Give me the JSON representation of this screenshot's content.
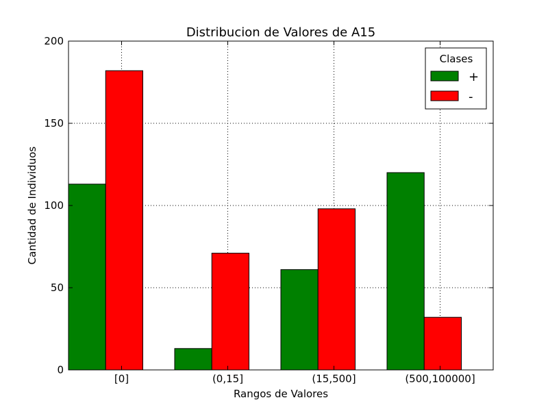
{
  "chart_data": {
    "type": "bar",
    "title": "Distribucion de Valores de A15",
    "xlabel": "Rangos de Valores",
    "ylabel": "Cantidad de Individuos",
    "categories": [
      "[0]",
      "(0,15]",
      "(15,500]",
      "(500,100000]"
    ],
    "ylim": [
      0,
      200
    ],
    "yticks": [
      0,
      50,
      100,
      150,
      200
    ],
    "grid": true,
    "legend": {
      "title": "Clases",
      "placement": "top-right"
    },
    "series": [
      {
        "name": "+",
        "color": "#008000",
        "values": [
          113,
          13,
          61,
          120
        ]
      },
      {
        "name": "-",
        "color": "#ff0000",
        "values": [
          182,
          71,
          98,
          32
        ]
      }
    ]
  }
}
